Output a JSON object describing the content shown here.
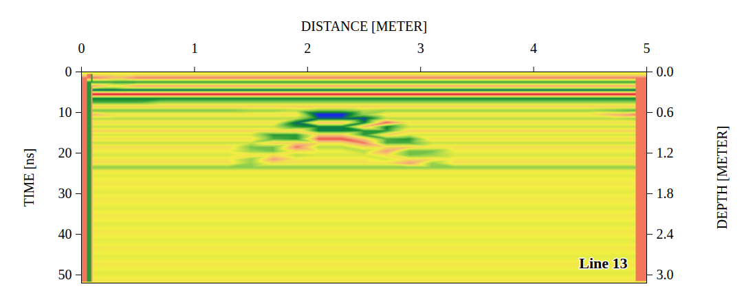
{
  "chart_data": {
    "type": "heatmap",
    "xlabel": "DISTANCE [METER]",
    "ylabel": "TIME [ns]",
    "y2label": "DEPTH [METER]",
    "annotation": "Line 13",
    "xlim": [
      0,
      5
    ],
    "xticks": [
      0,
      1,
      2,
      3,
      4,
      5
    ],
    "ylim": [
      0,
      52
    ],
    "yticks": [
      0,
      10,
      20,
      30,
      40,
      50
    ],
    "y2lim": [
      0,
      3.12
    ],
    "y2ticks": [
      {
        "value": 0,
        "label": "0.0"
      },
      {
        "value": 0.6,
        "label": "0.6"
      },
      {
        "value": 1.2,
        "label": "1.2"
      },
      {
        "value": 1.8,
        "label": "1.8"
      },
      {
        "value": 2.4,
        "label": "2.4"
      },
      {
        "value": 3,
        "label": "3.0"
      }
    ],
    "color_range": [
      -1,
      1
    ],
    "colors": [
      "#1a1aff",
      "#0d8a2e",
      "#8fcf4f",
      "#f2f042",
      "#f4b07a",
      "#ee3c3c",
      "#d8102a"
    ],
    "x": [
      0.1,
      0.3,
      0.5,
      0.7,
      0.9,
      1.1,
      1.3,
      1.5,
      1.7,
      1.9,
      2.1,
      2.3,
      2.5,
      2.7,
      2.9,
      3.1,
      3.3,
      3.5,
      3.7,
      3.9,
      4.1,
      4.3,
      4.5,
      4.7,
      4.9
    ],
    "y": [
      0.5,
      1.5,
      2.5,
      3.5,
      4.5,
      5.5,
      6.5,
      7.5,
      8.5,
      9.5,
      10.5,
      11.5,
      12.5,
      13.5,
      14.5,
      15.5,
      16.5,
      17.5,
      18.5,
      19.5,
      20.5,
      21.5,
      22.5,
      23.5,
      24.5,
      25.5,
      26.5,
      27.5,
      28.5,
      29.5,
      30.5,
      31.5,
      32.5,
      33.5,
      34.5,
      35.5,
      36.5,
      37.5,
      38.5,
      39.5,
      40.5,
      41.5,
      42.5,
      43.5,
      44.5,
      45.5,
      46.5,
      47.5,
      48.5,
      49.5,
      50.5,
      51.5
    ],
    "cells": [
      [
        0,
        0,
        0,
        0,
        0,
        0,
        0,
        0,
        0,
        0,
        0,
        0,
        0,
        0,
        0,
        0,
        0,
        0,
        0,
        0,
        0,
        0,
        0,
        0,
        0
      ],
      [
        0.5,
        0.3,
        0.5,
        0.5,
        0.5,
        0.5,
        0.5,
        0.5,
        0.5,
        0.5,
        0.5,
        0.5,
        0.5,
        0.5,
        0.5,
        0.5,
        0.5,
        0.5,
        0.5,
        0.5,
        0.5,
        0.5,
        0.5,
        0.5,
        0.5
      ],
      [
        -0.6,
        -0.6,
        -0.6,
        -0.6,
        -0.6,
        -0.6,
        -0.6,
        -0.6,
        -0.6,
        -0.6,
        -0.6,
        -0.6,
        -0.6,
        -0.6,
        -0.6,
        -0.6,
        -0.6,
        -0.6,
        -0.6,
        -0.6,
        -0.6,
        -0.6,
        -0.6,
        -0.6,
        -0.6
      ],
      [
        0.4,
        0.1,
        0.4,
        0.4,
        0.4,
        0.4,
        0.4,
        0.4,
        0.4,
        0.4,
        0.4,
        0.4,
        0.4,
        0.4,
        0.4,
        0.4,
        0.4,
        0.4,
        0.4,
        0.4,
        0.4,
        0.4,
        0.4,
        0.4,
        0.4
      ],
      [
        -0.8,
        -0.8,
        -0.8,
        -0.8,
        -0.8,
        -0.8,
        -0.8,
        -0.8,
        -0.8,
        -0.8,
        -0.8,
        -0.8,
        -0.8,
        -0.8,
        -0.8,
        -0.8,
        -0.8,
        -0.8,
        -0.8,
        -0.8,
        -0.8,
        -0.8,
        -0.8,
        -0.8,
        -0.8
      ],
      [
        0.9,
        0.9,
        0.9,
        0.9,
        0.9,
        0.9,
        0.9,
        0.9,
        0.9,
        0.9,
        0.9,
        0.9,
        0.9,
        0.9,
        0.9,
        0.9,
        0.9,
        0.9,
        0.9,
        0.9,
        0.9,
        0.9,
        0.9,
        0.9,
        0.9
      ],
      [
        -0.7,
        -0.7,
        -0.7,
        -0.7,
        -0.7,
        -0.7,
        -0.7,
        -0.7,
        -0.7,
        -0.7,
        -0.7,
        -0.7,
        -0.7,
        -0.7,
        -0.7,
        -0.7,
        -0.7,
        -0.7,
        -0.7,
        -0.7,
        -0.7,
        -0.7,
        -0.7,
        -0.7,
        -0.7
      ],
      [
        -0.5,
        -0.5,
        -0.5,
        -0.3,
        -0.3,
        -0.3,
        -0.3,
        -0.3,
        -0.3,
        -0.3,
        -0.3,
        -0.3,
        -0.3,
        -0.3,
        -0.3,
        -0.3,
        -0.3,
        -0.3,
        -0.3,
        -0.3,
        -0.3,
        -0.3,
        -0.3,
        -0.3,
        -0.3
      ],
      [
        0.2,
        0.2,
        0.2,
        0.2,
        0.2,
        0.2,
        0.2,
        0.2,
        0.2,
        0.2,
        0.2,
        0.2,
        0.2,
        0.2,
        0.2,
        0.2,
        0.2,
        0.2,
        0.2,
        0.2,
        0.2,
        0.2,
        0.2,
        0.2,
        0.2
      ],
      [
        -0.4,
        -0.4,
        -0.4,
        -0.4,
        -0.4,
        -0.4,
        -0.4,
        -0.3,
        -0.3,
        -0.2,
        -0.4,
        -0.4,
        -0.2,
        -0.3,
        -0.3,
        -0.3,
        -0.3,
        -0.3,
        -0.3,
        -0.3,
        -0.3,
        -0.3,
        -0.3,
        -0.4,
        -0.5
      ],
      [
        0.3,
        0.1,
        0.1,
        0.1,
        0.1,
        0.1,
        0.1,
        0.1,
        0.1,
        0.1,
        -1,
        -1,
        -0.3,
        0.1,
        0.1,
        0.1,
        0.1,
        0.1,
        0.1,
        0.1,
        0.1,
        0.1,
        0.1,
        0.3,
        0.5
      ],
      [
        -0.2,
        -0.2,
        -0.2,
        -0.2,
        -0.2,
        -0.2,
        -0.2,
        -0.2,
        -0.2,
        -0.2,
        -0.8,
        -0.8,
        -0.9,
        -0.2,
        -0.2,
        -0.2,
        -0.2,
        -0.2,
        -0.2,
        -0.2,
        -0.2,
        -0.2,
        -0.2,
        -0.2,
        -0.3
      ],
      [
        0.1,
        0.1,
        0.1,
        0.1,
        0.1,
        0.1,
        0.1,
        0.1,
        0.1,
        -0.8,
        0.3,
        0.3,
        -0.7,
        0.6,
        0.1,
        0.1,
        0.1,
        0.1,
        0.1,
        0.1,
        0.1,
        0.1,
        0.1,
        0.1,
        0.1
      ],
      [
        -0.15,
        -0.15,
        -0.15,
        -0.15,
        -0.15,
        -0.15,
        -0.15,
        -0.15,
        -0.15,
        -0.6,
        -0.7,
        -0.7,
        0.3,
        -0.7,
        -0.15,
        -0.15,
        -0.15,
        -0.15,
        -0.15,
        -0.15,
        -0.15,
        -0.15,
        -0.15,
        -0.15,
        -0.15
      ],
      [
        0.15,
        0.15,
        0.15,
        0.15,
        0.15,
        0.15,
        0.15,
        0.15,
        0.15,
        0.2,
        -0.7,
        -0.7,
        -0.6,
        -0.6,
        0.15,
        0.15,
        0.15,
        0.15,
        0.15,
        0.15,
        0.15,
        0.15,
        0.15,
        0.15,
        0.15
      ],
      [
        -0.1,
        -0.1,
        -0.1,
        -0.1,
        -0.1,
        -0.1,
        -0.1,
        -0.1,
        -0.6,
        -0.6,
        0.2,
        0.2,
        -0.6,
        0.2,
        -0.1,
        -0.1,
        -0.1,
        -0.1,
        -0.1,
        -0.1,
        -0.1,
        -0.1,
        -0.1,
        -0.1,
        -0.1
      ],
      [
        0.1,
        0.1,
        0.1,
        0.1,
        0.1,
        0.1,
        0.1,
        0.1,
        -0.5,
        -0.6,
        0.6,
        0.6,
        0.2,
        -0.5,
        -0.6,
        0.1,
        0.1,
        0.1,
        0.1,
        0.1,
        0.1,
        0.1,
        0.1,
        0.1,
        0.1
      ],
      [
        -0.15,
        -0.15,
        -0.15,
        -0.15,
        -0.15,
        -0.15,
        -0.15,
        -0.15,
        0.2,
        0.2,
        0.1,
        0.1,
        0.5,
        -0.5,
        -0.5,
        -0.15,
        -0.15,
        -0.15,
        -0.15,
        -0.15,
        -0.15,
        -0.15,
        -0.15,
        -0.15,
        -0.15
      ],
      [
        0.1,
        0.1,
        0.1,
        0.1,
        0.1,
        0.1,
        0.1,
        -0.4,
        -0.4,
        0.5,
        -0.2,
        -0.2,
        0.1,
        0.1,
        0.2,
        0.1,
        0.1,
        0.1,
        0.1,
        0.1,
        0.1,
        0.1,
        0.1,
        0.1,
        0.1
      ],
      [
        0,
        0,
        0,
        0,
        0,
        0,
        0,
        -0.3,
        -0.4,
        0.1,
        0,
        0,
        -0.2,
        0.4,
        -0.4,
        -0.4,
        0,
        0,
        0,
        0,
        0,
        0,
        0,
        0,
        0
      ],
      [
        -0.1,
        -0.1,
        -0.1,
        -0.1,
        -0.1,
        -0.1,
        -0.1,
        0.1,
        0.1,
        -0.2,
        -0.1,
        -0.1,
        -0.1,
        0.1,
        -0.4,
        -0.3,
        -0.1,
        -0.1,
        -0.1,
        -0.1,
        -0.1,
        -0.1,
        -0.1,
        -0.1,
        -0.1
      ],
      [
        0.05,
        0.05,
        0.05,
        0.05,
        0.05,
        0.05,
        0.05,
        -0.3,
        0.4,
        0.05,
        0.05,
        0.05,
        0.05,
        -0.1,
        0.1,
        0.1,
        0.05,
        0.05,
        0.05,
        0.05,
        0.05,
        0.05,
        0.05,
        0.05,
        0.05
      ],
      [
        0.1,
        0.1,
        0.1,
        0.1,
        0.1,
        0.1,
        0.1,
        -0.3,
        0.1,
        0.1,
        0.1,
        0.1,
        0.1,
        0.1,
        0.4,
        -0.3,
        0.1,
        0.1,
        0.1,
        0.1,
        0.1,
        0.1,
        0.1,
        0.1,
        0.1
      ],
      [
        -0.35,
        -0.35,
        -0.35,
        -0.35,
        -0.35,
        -0.35,
        -0.35,
        -0.35,
        -0.35,
        -0.35,
        -0.35,
        -0.35,
        -0.35,
        -0.35,
        -0.35,
        -0.35,
        -0.35,
        -0.35,
        -0.35,
        -0.35,
        -0.35,
        -0.35,
        -0.35,
        -0.35,
        -0.35
      ],
      [
        0.05,
        0.05,
        0.05,
        0.05,
        0.05,
        0.05,
        0.05,
        0.05,
        0.05,
        0.05,
        0.05,
        0.05,
        0.05,
        0.05,
        0.05,
        0.05,
        0.05,
        0.05,
        0.05,
        0.05,
        0.05,
        0.05,
        0.05,
        0.05,
        0.05
      ],
      [
        -0.05,
        -0.05,
        -0.05,
        -0.05,
        -0.05,
        -0.05,
        -0.05,
        -0.05,
        -0.05,
        -0.05,
        -0.05,
        -0.05,
        -0.05,
        -0.05,
        -0.05,
        -0.05,
        -0.05,
        -0.05,
        -0.05,
        -0.05,
        -0.05,
        -0.05,
        -0.05,
        -0.05,
        -0.05
      ],
      [
        0,
        0,
        0,
        0,
        0,
        0,
        0,
        0,
        0,
        0,
        0,
        0,
        0,
        0,
        0,
        0,
        0,
        0,
        0,
        0,
        0,
        0,
        0,
        0,
        0
      ],
      [
        0.05,
        0.05,
        0.05,
        0.05,
        0.05,
        0.05,
        0.05,
        0.05,
        0.05,
        0.05,
        0.05,
        0.05,
        0.05,
        0.05,
        0.05,
        0.05,
        0.05,
        0.05,
        0.05,
        0.05,
        0.05,
        0.05,
        0.05,
        0.05,
        0.05
      ],
      [
        0,
        0,
        0,
        0,
        0,
        0,
        0,
        0,
        0,
        0,
        0,
        0,
        0,
        0,
        0,
        0,
        0,
        0,
        0,
        0,
        0,
        0,
        0,
        0,
        0
      ],
      [
        -0.05,
        -0.05,
        -0.05,
        -0.05,
        -0.05,
        -0.05,
        -0.05,
        -0.05,
        -0.05,
        -0.05,
        -0.05,
        -0.05,
        -0.05,
        -0.05,
        -0.05,
        -0.05,
        -0.05,
        -0.05,
        -0.05,
        -0.05,
        -0.05,
        -0.05,
        -0.05,
        -0.05,
        -0.05
      ],
      [
        0,
        0,
        0,
        0,
        0,
        0,
        0,
        0,
        0,
        0,
        0,
        0,
        0,
        0,
        0,
        0,
        0,
        0,
        0,
        0,
        0,
        0,
        0,
        0,
        0
      ],
      [
        0.05,
        0.05,
        0.05,
        0.05,
        0.05,
        0.05,
        0.05,
        0.05,
        0.05,
        0.05,
        0.05,
        0.05,
        0.05,
        0.05,
        0.05,
        0.05,
        0.05,
        0.05,
        0.05,
        0.05,
        0.05,
        0.05,
        0.05,
        0.05,
        0.05
      ],
      [
        0,
        0,
        0,
        0,
        0,
        0,
        0,
        0,
        0,
        0,
        0,
        0,
        0,
        0,
        0,
        0,
        0,
        0,
        0,
        0,
        0,
        0,
        0,
        0,
        0
      ],
      [
        -0.05,
        -0.05,
        -0.05,
        -0.05,
        -0.05,
        -0.05,
        -0.05,
        -0.05,
        -0.05,
        -0.05,
        -0.05,
        -0.05,
        -0.05,
        -0.05,
        -0.05,
        -0.05,
        -0.05,
        -0.05,
        -0.05,
        -0.05,
        -0.05,
        -0.05,
        -0.05,
        -0.05,
        -0.05
      ],
      [
        0,
        0,
        0,
        0,
        0,
        0,
        0,
        0,
        0,
        0,
        0,
        0,
        0,
        0,
        0,
        0,
        0,
        0,
        0,
        0,
        0,
        0,
        0,
        0,
        0
      ],
      [
        0.05,
        0.05,
        0.05,
        0.05,
        0.05,
        0.05,
        0.05,
        0.05,
        0.05,
        0.05,
        0.05,
        0.05,
        0.05,
        0.05,
        0.05,
        0.05,
        0.05,
        0.05,
        0.05,
        0.05,
        0.05,
        0.05,
        0.05,
        0.05,
        0.05
      ],
      [
        0,
        0,
        0,
        0,
        0,
        0,
        0,
        0,
        0,
        0,
        0,
        0,
        0,
        0,
        0,
        0,
        0,
        0,
        0,
        0,
        0,
        0,
        0,
        0,
        0
      ],
      [
        -0.05,
        -0.05,
        -0.05,
        -0.05,
        -0.05,
        -0.05,
        -0.05,
        -0.05,
        -0.05,
        -0.05,
        -0.05,
        -0.05,
        -0.05,
        -0.05,
        -0.05,
        -0.05,
        -0.05,
        -0.05,
        -0.05,
        -0.05,
        -0.05,
        -0.05,
        -0.05,
        -0.05,
        -0.05
      ],
      [
        0,
        0,
        0,
        0,
        0,
        0,
        0,
        0,
        0,
        0,
        0,
        0,
        0,
        0,
        0,
        0,
        0,
        0,
        0,
        0,
        0,
        0,
        0,
        0,
        0
      ],
      [
        0.05,
        0.05,
        0.05,
        0.05,
        0.05,
        0.05,
        0.05,
        0.05,
        0.05,
        0.05,
        0.05,
        0.05,
        0.05,
        0.05,
        0.05,
        0.05,
        0.05,
        0.05,
        0.05,
        0.05,
        0.05,
        0.05,
        0.05,
        0.05,
        0.05
      ],
      [
        0,
        0,
        0,
        0,
        0,
        0,
        0,
        0,
        0,
        0,
        0,
        0,
        0,
        0,
        0,
        0,
        0,
        0,
        0,
        0,
        0,
        0,
        0,
        0,
        0
      ],
      [
        -0.05,
        -0.05,
        -0.05,
        -0.05,
        -0.05,
        -0.05,
        -0.05,
        -0.05,
        -0.05,
        -0.05,
        -0.05,
        -0.05,
        -0.05,
        -0.05,
        -0.05,
        -0.05,
        -0.05,
        -0.05,
        -0.05,
        -0.05,
        -0.05,
        -0.05,
        -0.05,
        -0.05,
        -0.05
      ],
      [
        0,
        0,
        0,
        0,
        0,
        0,
        0,
        0,
        0,
        0,
        0,
        0,
        0,
        0,
        0,
        0,
        0,
        0,
        0,
        0,
        0,
        0,
        0,
        0,
        0
      ],
      [
        0.05,
        0.05,
        0.05,
        0.05,
        0.05,
        0.05,
        0.05,
        0.05,
        0.05,
        0.05,
        0.05,
        0.05,
        0.05,
        0.05,
        0.05,
        0.05,
        0.05,
        0.05,
        0.05,
        0.05,
        0.05,
        0.05,
        0.05,
        0.05,
        0.05
      ],
      [
        0,
        0,
        0,
        0,
        0,
        0,
        0,
        0,
        0,
        0,
        0,
        0,
        0,
        0,
        0,
        0,
        0,
        0,
        0,
        0,
        0,
        0,
        0,
        0,
        0
      ],
      [
        -0.05,
        -0.05,
        -0.05,
        -0.05,
        -0.05,
        -0.05,
        -0.05,
        -0.05,
        -0.05,
        -0.05,
        -0.05,
        -0.05,
        -0.05,
        -0.05,
        -0.05,
        -0.05,
        -0.05,
        -0.05,
        -0.05,
        -0.05,
        -0.05,
        -0.05,
        -0.05,
        -0.05,
        -0.05
      ],
      [
        0,
        0,
        0,
        0,
        0,
        0,
        0,
        0,
        0,
        0,
        0,
        0,
        0,
        0,
        0,
        0,
        0,
        0,
        0,
        0,
        0,
        0,
        0,
        0,
        0
      ],
      [
        0.05,
        0.05,
        0.05,
        0.05,
        0.05,
        0.05,
        0.05,
        0.05,
        0.05,
        0.05,
        0.05,
        0.05,
        0.05,
        0.05,
        0.05,
        0.05,
        0.05,
        0.05,
        0.05,
        0.05,
        0.05,
        0.05,
        0.05,
        0.05,
        0.05
      ],
      [
        0,
        0,
        0,
        0,
        0,
        0,
        0,
        0,
        0,
        0,
        0,
        0,
        0,
        0,
        0,
        0,
        0,
        0,
        0,
        0,
        0,
        0,
        0,
        0,
        0
      ],
      [
        -0.05,
        -0.05,
        -0.05,
        -0.05,
        -0.05,
        -0.05,
        -0.05,
        -0.05,
        -0.05,
        -0.05,
        -0.05,
        -0.05,
        -0.05,
        -0.05,
        -0.05,
        -0.05,
        -0.05,
        -0.05,
        -0.05,
        -0.05,
        -0.05,
        -0.05,
        -0.05,
        -0.05,
        -0.05
      ],
      [
        0,
        0,
        0,
        0,
        0,
        0,
        0,
        0,
        0,
        0,
        0,
        0,
        0,
        0,
        0,
        0,
        0,
        0,
        0,
        0,
        0,
        0,
        0,
        0,
        0
      ],
      [
        0.05,
        0.05,
        0.05,
        0.05,
        0.05,
        0.05,
        0.05,
        0.05,
        0.05,
        0.05,
        0.05,
        0.05,
        0.05,
        0.05,
        0.05,
        0.05,
        0.05,
        0.05,
        0.05,
        0.05,
        0.05,
        0.05,
        0.05,
        0.05,
        0.05
      ]
    ]
  }
}
